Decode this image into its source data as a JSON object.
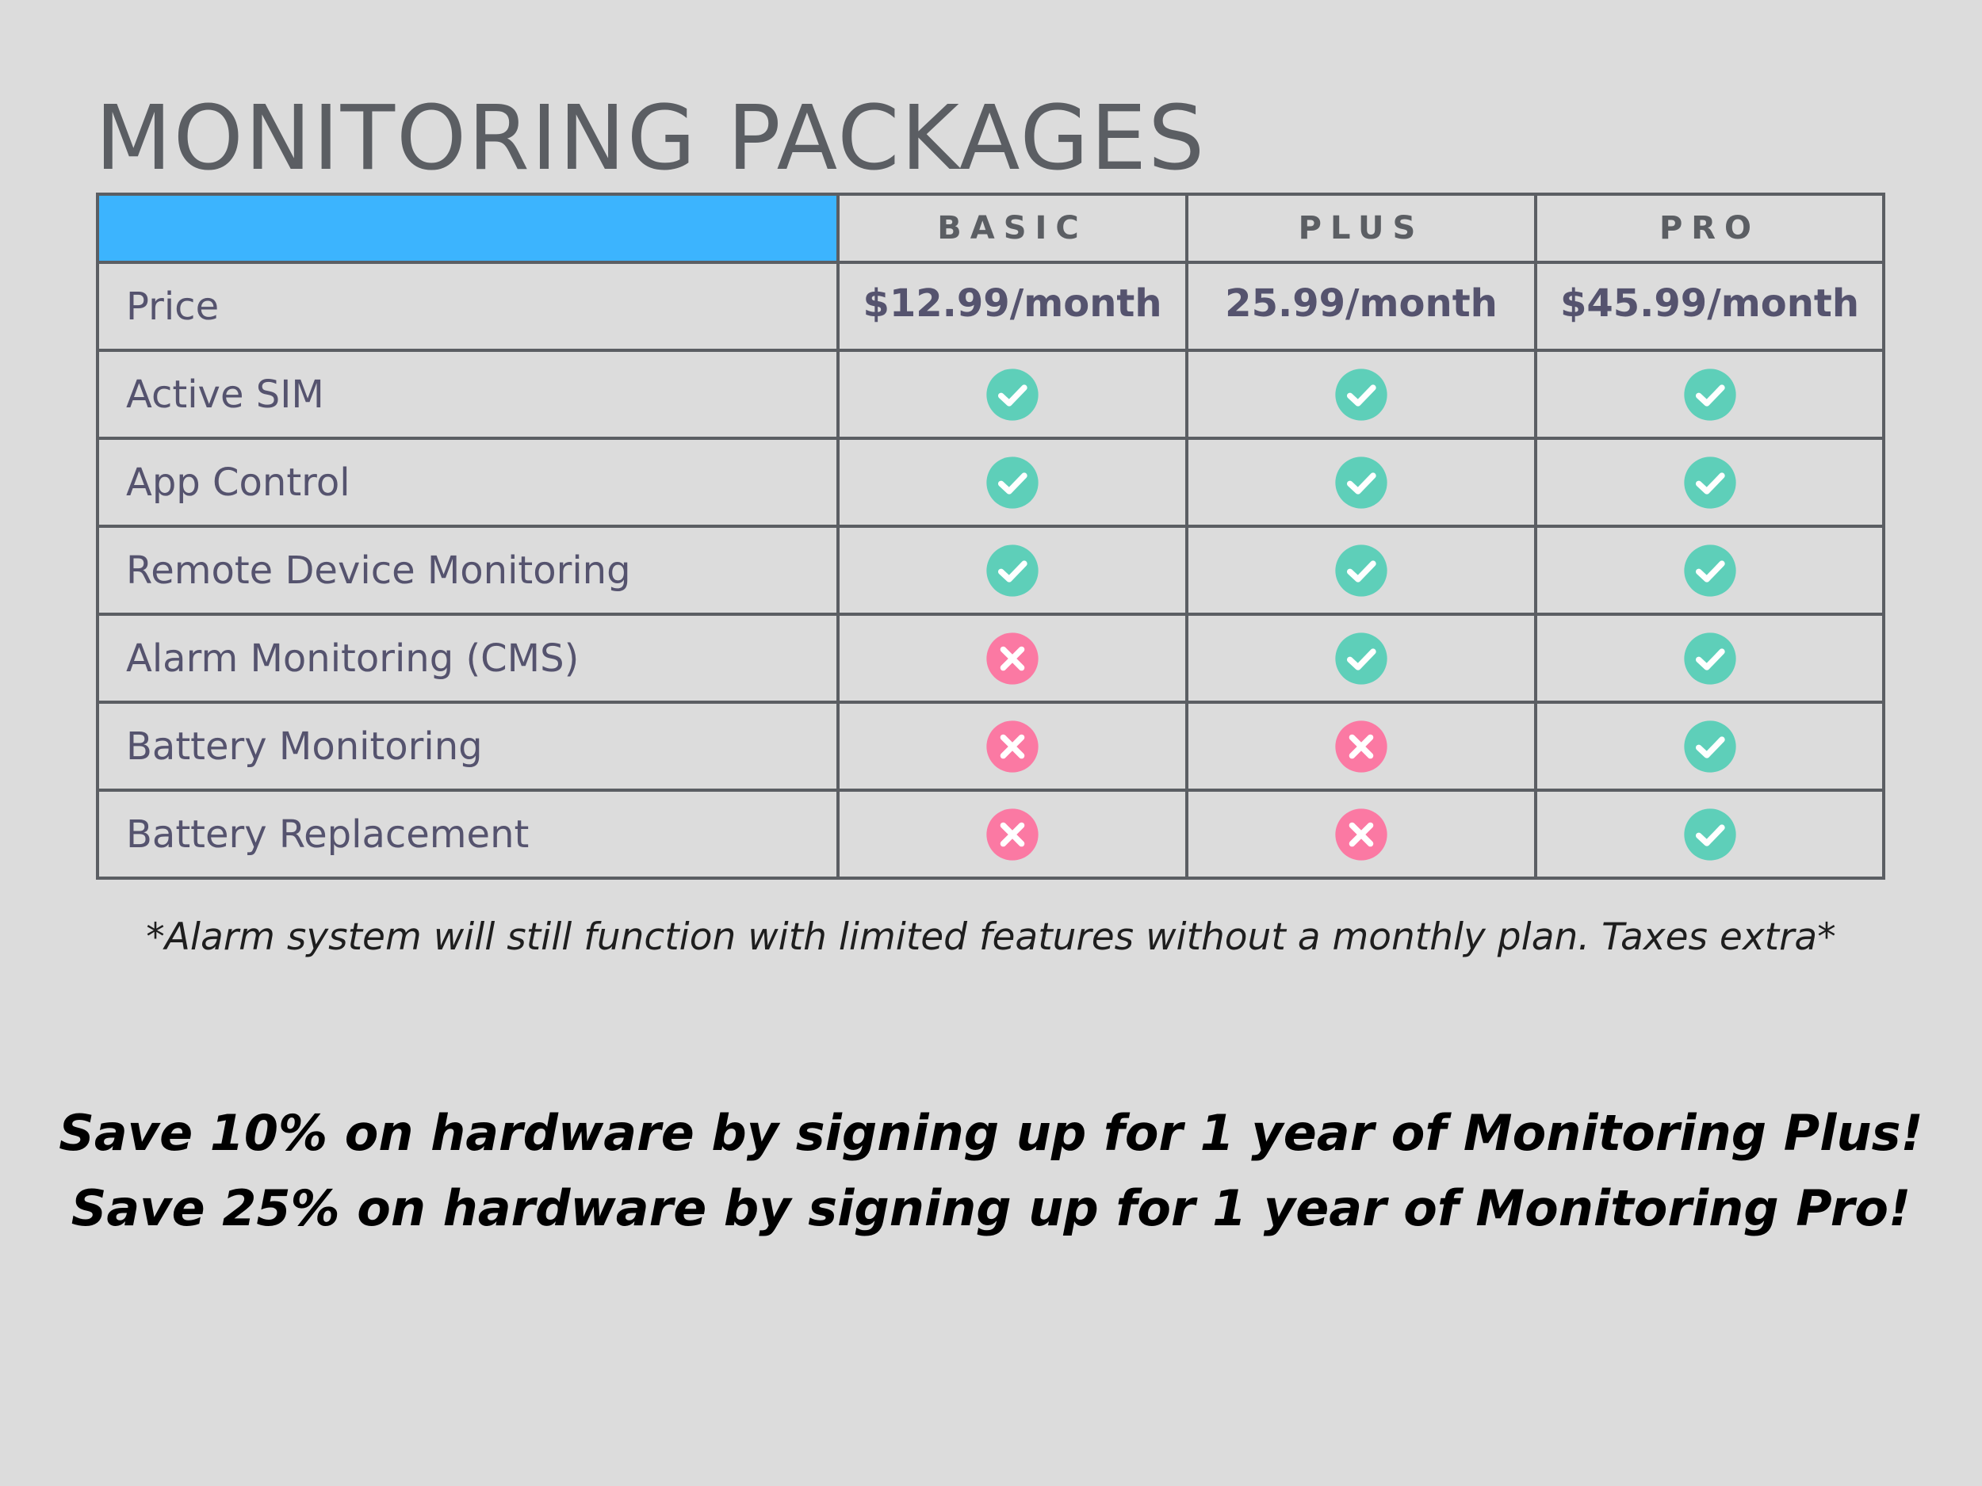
{
  "title": "MONITORING PACKAGES",
  "colors": {
    "background": "#dcdcdc",
    "header_accent": "#3cb4fe",
    "border": "#5b5e63",
    "text": "#55536e",
    "check": "#5ecfb9",
    "cross": "#fb79a3"
  },
  "table": {
    "plans": [
      "BASIC",
      "PLUS",
      "PRO"
    ],
    "price_label": "Price",
    "prices": [
      "$12.99/month",
      "25.99/month",
      "$45.99/month"
    ],
    "features": [
      {
        "label": "Active SIM",
        "included": [
          true,
          true,
          true
        ]
      },
      {
        "label": "App Control",
        "included": [
          true,
          true,
          true
        ]
      },
      {
        "label": "Remote Device Monitoring",
        "included": [
          true,
          true,
          true
        ]
      },
      {
        "label": "Alarm Monitoring (CMS)",
        "included": [
          false,
          true,
          true
        ]
      },
      {
        "label": "Battery Monitoring",
        "included": [
          false,
          false,
          true
        ]
      },
      {
        "label": "Battery Replacement",
        "included": [
          false,
          false,
          true
        ]
      }
    ],
    "icons": {
      "included": "check-circle-icon",
      "excluded": "x-circle-icon"
    }
  },
  "footnote": "*Alarm system will still function with limited features without a monthly plan. Taxes extra*",
  "promos": [
    "Save 10% on hardware by signing up for 1 year of Monitoring Plus!",
    "Save 25% on hardware by signing up for 1 year of Monitoring Pro!"
  ]
}
